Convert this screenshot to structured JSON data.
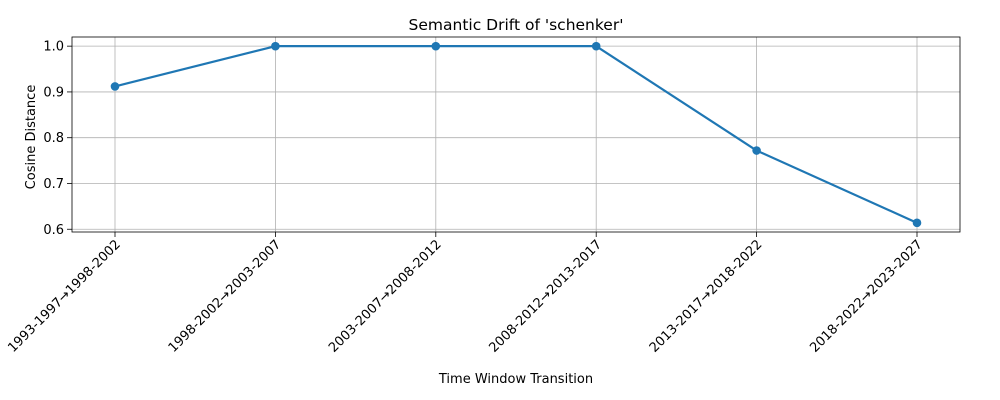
{
  "chart_data": {
    "type": "line",
    "title": "Semantic Drift of 'schenker'",
    "xlabel": "Time Window Transition",
    "ylabel": "Cosine Distance",
    "categories": [
      "1993-1997→1998-2002",
      "1998-2002→2003-2007",
      "2003-2007→2008-2012",
      "2008-2012→2013-2017",
      "2013-2017→2018-2022",
      "2018-2022→2023-2027"
    ],
    "series": [
      {
        "values": [
          0.912,
          1.0,
          1.0,
          1.0,
          0.772,
          0.614
        ]
      }
    ],
    "ylim": [
      0.594,
      1.02
    ],
    "yticks": [
      "0.6",
      "0.7",
      "0.8",
      "0.9",
      "1.0"
    ],
    "grid": true,
    "legend": "none",
    "color": "#1f77b4"
  }
}
